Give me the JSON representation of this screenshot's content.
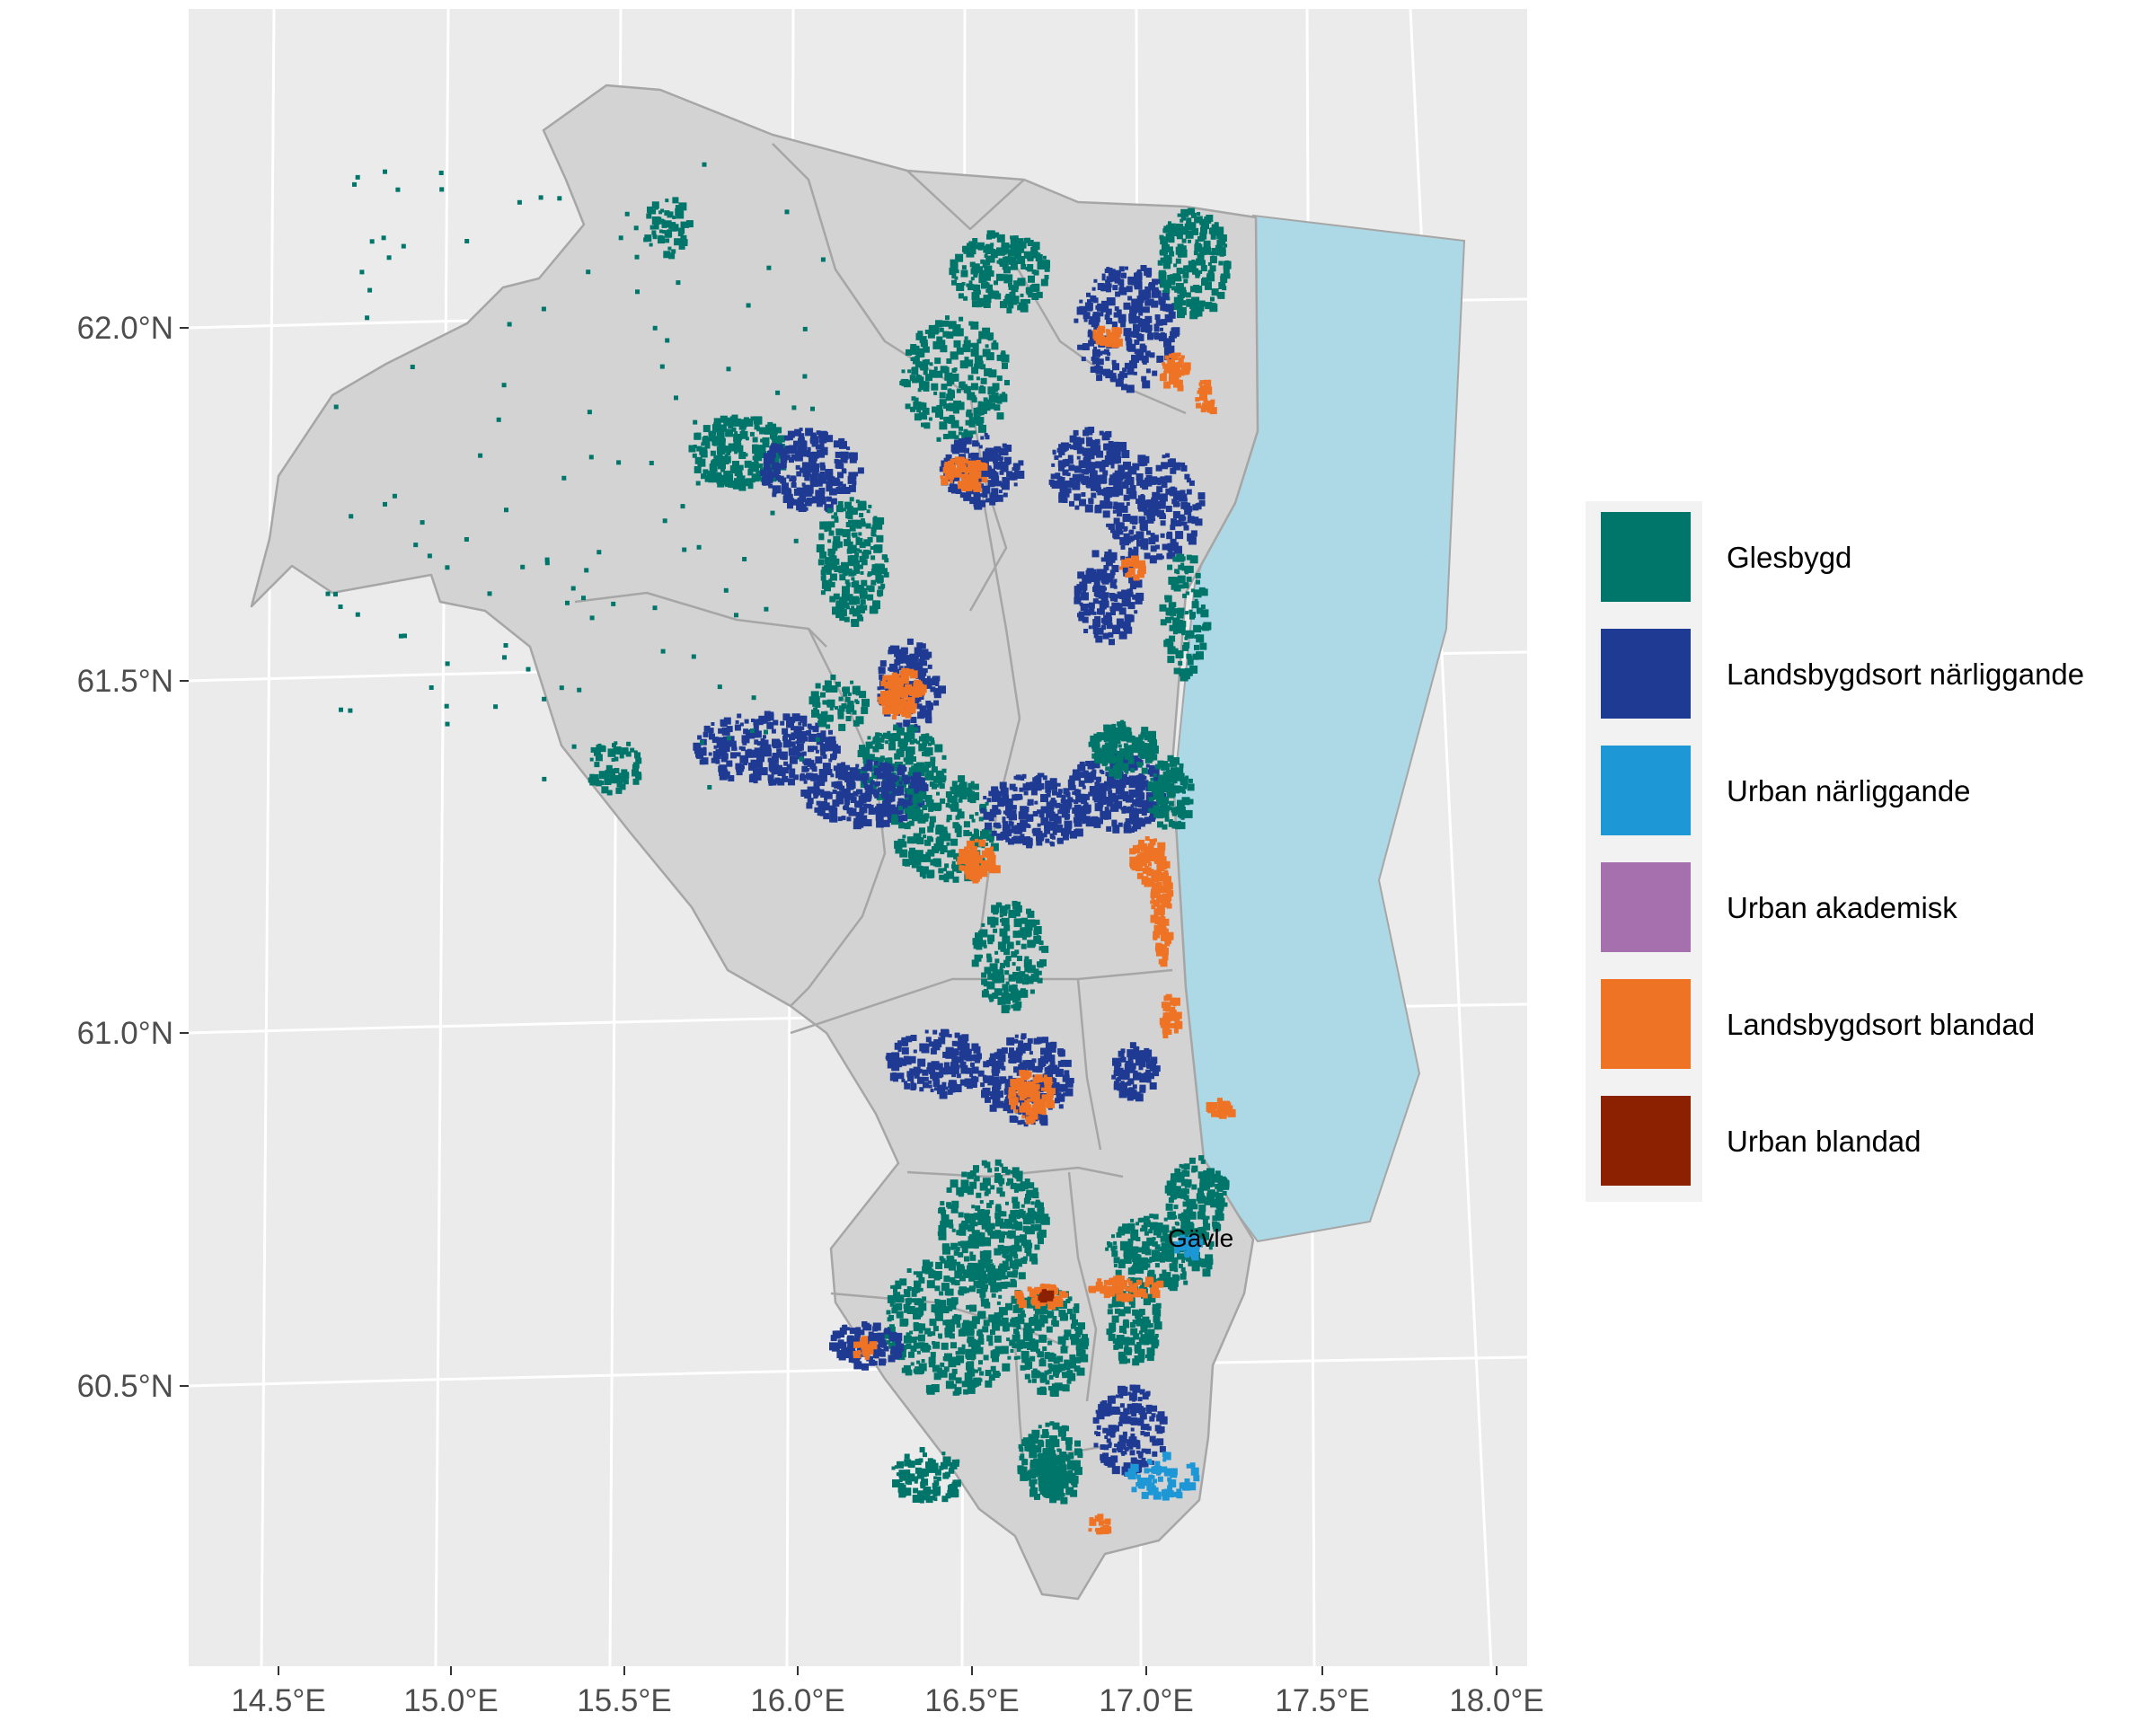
{
  "map": {
    "type": "choropleth-map",
    "region": "Gävleborg",
    "longitude_ticks": [
      "14.5°E",
      "15.0°E",
      "15.5°E",
      "16.0°E",
      "16.5°E",
      "17.0°E",
      "17.5°E",
      "18.0°E"
    ],
    "latitude_ticks": [
      "62.0°N",
      "61.5°N",
      "61.0°N",
      "60.5°N"
    ],
    "longitude_values": [
      14.5,
      15.0,
      15.5,
      16.0,
      16.5,
      17.0,
      17.5,
      18.0
    ],
    "latitude_values": [
      62.0,
      61.5,
      61.0,
      60.5
    ],
    "place_label": "Gävle",
    "colors": {
      "panel_background": "#ebebeb",
      "land": "#d3d3d3",
      "land_border": "#a6a6a6",
      "sea": "#add8e6",
      "grid": "#ffffff"
    }
  },
  "legend": {
    "items": [
      {
        "label": "Glesbygd",
        "color": "#00756a"
      },
      {
        "label": "Landsbygdsort närliggande",
        "color": "#1f3a93"
      },
      {
        "label": "Urban närliggande",
        "color": "#1d97d6"
      },
      {
        "label": "Urban akademisk",
        "color": "#a66fad"
      },
      {
        "label": "Landsbygdsort blandad",
        "color": "#ee7325"
      },
      {
        "label": "Urban blandad",
        "color": "#8b2100"
      }
    ]
  }
}
